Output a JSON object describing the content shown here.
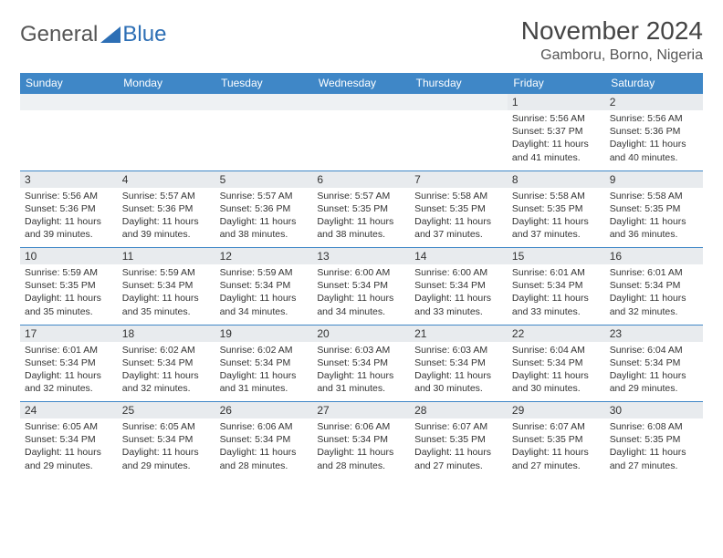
{
  "logo": {
    "text1": "General",
    "text2": "Blue"
  },
  "title": "November 2024",
  "location": "Gamboru, Borno, Nigeria",
  "colors": {
    "header_bg": "#3f87c7",
    "header_text": "#ffffff",
    "daynum_bg": "#e8ebee",
    "border": "#3f87c7",
    "body_text": "#333333",
    "logo_gray": "#555555",
    "logo_blue": "#2d6fb5"
  },
  "weekdays": [
    "Sunday",
    "Monday",
    "Tuesday",
    "Wednesday",
    "Thursday",
    "Friday",
    "Saturday"
  ],
  "first_weekday_index": 5,
  "days": {
    "1": {
      "sunrise": "5:56 AM",
      "sunset": "5:37 PM",
      "daylight": "11 hours and 41 minutes."
    },
    "2": {
      "sunrise": "5:56 AM",
      "sunset": "5:36 PM",
      "daylight": "11 hours and 40 minutes."
    },
    "3": {
      "sunrise": "5:56 AM",
      "sunset": "5:36 PM",
      "daylight": "11 hours and 39 minutes."
    },
    "4": {
      "sunrise": "5:57 AM",
      "sunset": "5:36 PM",
      "daylight": "11 hours and 39 minutes."
    },
    "5": {
      "sunrise": "5:57 AM",
      "sunset": "5:36 PM",
      "daylight": "11 hours and 38 minutes."
    },
    "6": {
      "sunrise": "5:57 AM",
      "sunset": "5:35 PM",
      "daylight": "11 hours and 38 minutes."
    },
    "7": {
      "sunrise": "5:58 AM",
      "sunset": "5:35 PM",
      "daylight": "11 hours and 37 minutes."
    },
    "8": {
      "sunrise": "5:58 AM",
      "sunset": "5:35 PM",
      "daylight": "11 hours and 37 minutes."
    },
    "9": {
      "sunrise": "5:58 AM",
      "sunset": "5:35 PM",
      "daylight": "11 hours and 36 minutes."
    },
    "10": {
      "sunrise": "5:59 AM",
      "sunset": "5:35 PM",
      "daylight": "11 hours and 35 minutes."
    },
    "11": {
      "sunrise": "5:59 AM",
      "sunset": "5:34 PM",
      "daylight": "11 hours and 35 minutes."
    },
    "12": {
      "sunrise": "5:59 AM",
      "sunset": "5:34 PM",
      "daylight": "11 hours and 34 minutes."
    },
    "13": {
      "sunrise": "6:00 AM",
      "sunset": "5:34 PM",
      "daylight": "11 hours and 34 minutes."
    },
    "14": {
      "sunrise": "6:00 AM",
      "sunset": "5:34 PM",
      "daylight": "11 hours and 33 minutes."
    },
    "15": {
      "sunrise": "6:01 AM",
      "sunset": "5:34 PM",
      "daylight": "11 hours and 33 minutes."
    },
    "16": {
      "sunrise": "6:01 AM",
      "sunset": "5:34 PM",
      "daylight": "11 hours and 32 minutes."
    },
    "17": {
      "sunrise": "6:01 AM",
      "sunset": "5:34 PM",
      "daylight": "11 hours and 32 minutes."
    },
    "18": {
      "sunrise": "6:02 AM",
      "sunset": "5:34 PM",
      "daylight": "11 hours and 32 minutes."
    },
    "19": {
      "sunrise": "6:02 AM",
      "sunset": "5:34 PM",
      "daylight": "11 hours and 31 minutes."
    },
    "20": {
      "sunrise": "6:03 AM",
      "sunset": "5:34 PM",
      "daylight": "11 hours and 31 minutes."
    },
    "21": {
      "sunrise": "6:03 AM",
      "sunset": "5:34 PM",
      "daylight": "11 hours and 30 minutes."
    },
    "22": {
      "sunrise": "6:04 AM",
      "sunset": "5:34 PM",
      "daylight": "11 hours and 30 minutes."
    },
    "23": {
      "sunrise": "6:04 AM",
      "sunset": "5:34 PM",
      "daylight": "11 hours and 29 minutes."
    },
    "24": {
      "sunrise": "6:05 AM",
      "sunset": "5:34 PM",
      "daylight": "11 hours and 29 minutes."
    },
    "25": {
      "sunrise": "6:05 AM",
      "sunset": "5:34 PM",
      "daylight": "11 hours and 29 minutes."
    },
    "26": {
      "sunrise": "6:06 AM",
      "sunset": "5:34 PM",
      "daylight": "11 hours and 28 minutes."
    },
    "27": {
      "sunrise": "6:06 AM",
      "sunset": "5:34 PM",
      "daylight": "11 hours and 28 minutes."
    },
    "28": {
      "sunrise": "6:07 AM",
      "sunset": "5:35 PM",
      "daylight": "11 hours and 27 minutes."
    },
    "29": {
      "sunrise": "6:07 AM",
      "sunset": "5:35 PM",
      "daylight": "11 hours and 27 minutes."
    },
    "30": {
      "sunrise": "6:08 AM",
      "sunset": "5:35 PM",
      "daylight": "11 hours and 27 minutes."
    }
  },
  "labels": {
    "sunrise": "Sunrise: ",
    "sunset": "Sunset: ",
    "daylight": "Daylight: "
  }
}
